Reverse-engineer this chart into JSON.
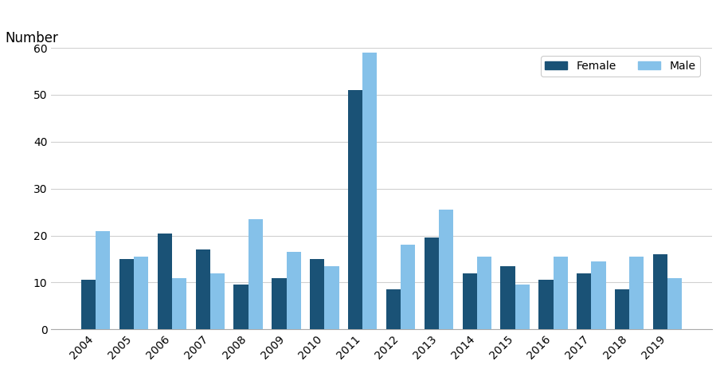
{
  "years": [
    2004,
    2005,
    2006,
    2007,
    2008,
    2009,
    2010,
    2011,
    2012,
    2013,
    2014,
    2015,
    2016,
    2017,
    2018,
    2019
  ],
  "female": [
    10.5,
    15,
    20.5,
    17,
    9.5,
    11,
    15,
    51,
    8.5,
    19.5,
    12,
    13.5,
    10.5,
    12,
    8.5,
    16
  ],
  "male": [
    21,
    15.5,
    11,
    12,
    23.5,
    16.5,
    13.5,
    59,
    18,
    25.5,
    15.5,
    9.5,
    15.5,
    14.5,
    15.5,
    11
  ],
  "female_color": "#1a5276",
  "male_color": "#85c1e9",
  "number_label": "Number",
  "ylim": [
    0,
    60
  ],
  "yticks": [
    0,
    10,
    20,
    30,
    40,
    50,
    60
  ],
  "background_color": "#ffffff",
  "plot_bg_color": "#ffffff",
  "grid_color": "#d0d0d0",
  "legend_labels": [
    "Female",
    "Male"
  ],
  "bar_width": 0.38,
  "figsize": [
    9.09,
    4.68
  ],
  "dpi": 100
}
